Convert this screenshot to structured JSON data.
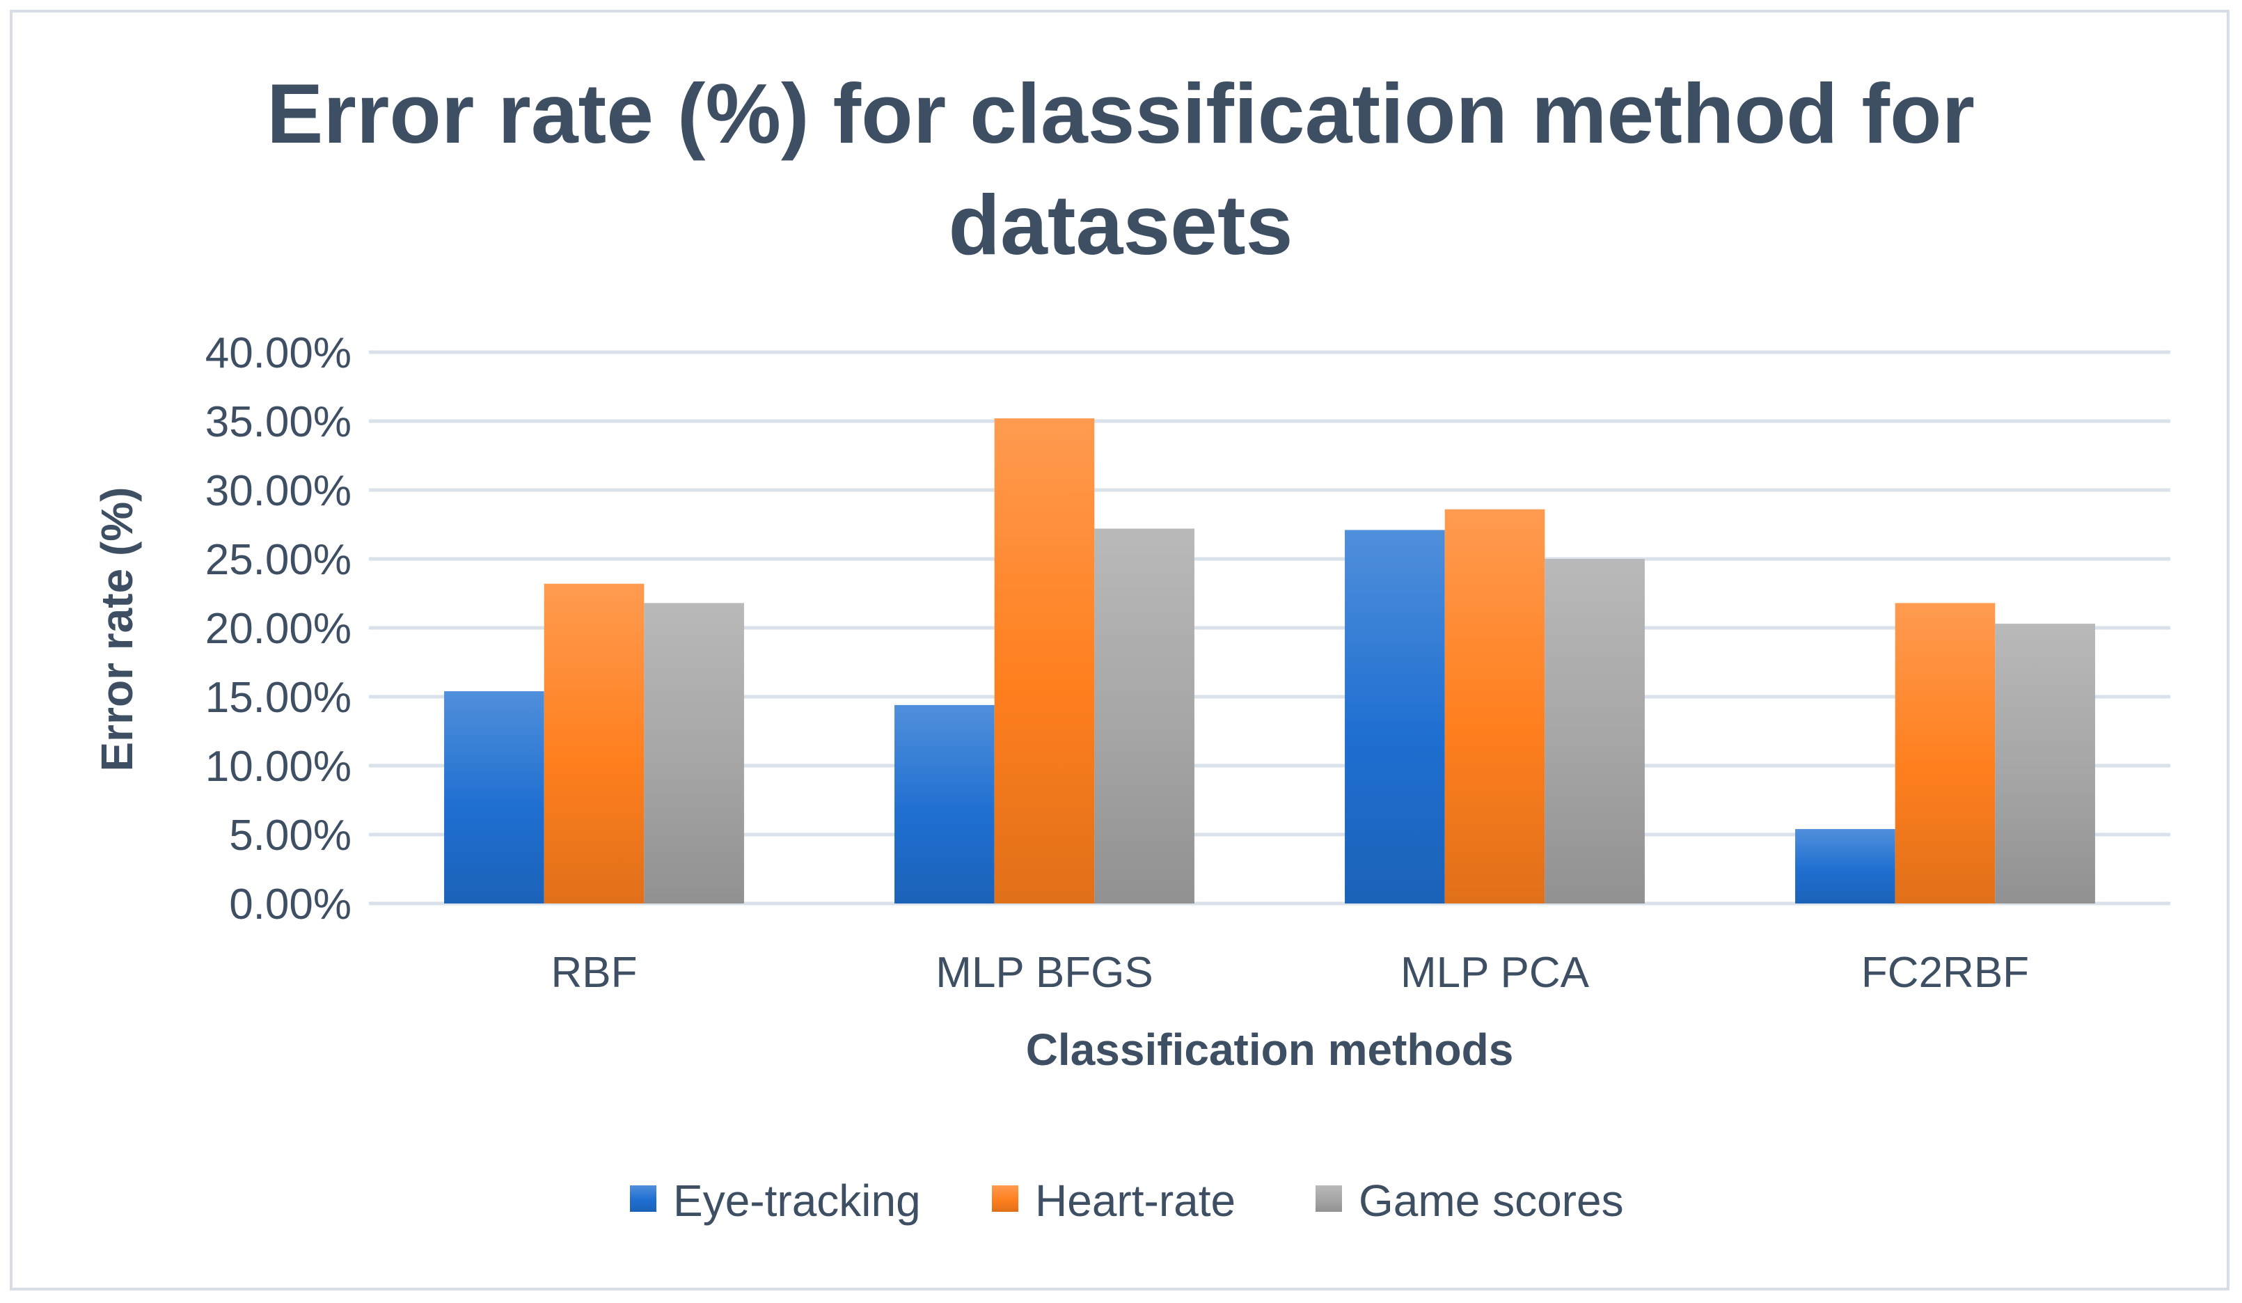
{
  "chart_data": {
    "type": "bar",
    "title_lines": [
      "Error rate (%) for classification method for",
      "datasets"
    ],
    "xlabel": "Classification methods",
    "ylabel": "Error rate (%)",
    "categories": [
      "RBF",
      "MLP BFGS",
      "MLP PCA",
      "FC2RBF"
    ],
    "series": [
      {
        "name": "Eye-tracking",
        "values": [
          15.4,
          14.4,
          27.1,
          5.4
        ],
        "color": "#1f6fd1"
      },
      {
        "name": "Heart-rate",
        "values": [
          23.2,
          35.2,
          28.6,
          21.8
        ],
        "color": "#ff7f1e"
      },
      {
        "name": "Game scores",
        "values": [
          21.8,
          27.2,
          25.0,
          20.3
        ],
        "color": "#a5a5a5"
      }
    ],
    "ylim": [
      0,
      40
    ],
    "yticks": [
      "0.00%",
      "5.00%",
      "10.00%",
      "15.00%",
      "20.00%",
      "25.00%",
      "30.00%",
      "35.00%",
      "40.00%"
    ],
    "grid": true,
    "legend_position": "bottom"
  }
}
